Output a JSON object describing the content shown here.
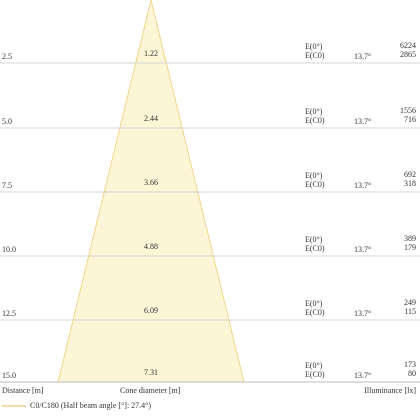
{
  "rows": [
    {
      "distance": "2.5",
      "diameter": "1.22",
      "e0_label": "E(0°)",
      "ec0_label": "E(C0)",
      "angle": "13.7°",
      "e0": "6224",
      "ec0": "2865"
    },
    {
      "distance": "5.0",
      "diameter": "2.44",
      "e0_label": "E(0°)",
      "ec0_label": "E(C0)",
      "angle": "13.7°",
      "e0": "1556",
      "ec0": "716"
    },
    {
      "distance": "7.5",
      "diameter": "3.66",
      "e0_label": "E(0°)",
      "ec0_label": "E(C0)",
      "angle": "13.7°",
      "e0": "692",
      "ec0": "318"
    },
    {
      "distance": "10.0",
      "diameter": "4.88",
      "e0_label": "E(0°)",
      "ec0_label": "E(C0)",
      "angle": "13.7°",
      "e0": "389",
      "ec0": "179"
    },
    {
      "distance": "12.5",
      "diameter": "6.09",
      "e0_label": "E(0°)",
      "ec0_label": "E(C0)",
      "angle": "13.7°",
      "e0": "249",
      "ec0": "115"
    },
    {
      "distance": "15.0",
      "diameter": "7.31",
      "e0_label": "E(0°)",
      "ec0_label": "E(C0)",
      "angle": "13.7°",
      "e0": "173",
      "ec0": "80"
    }
  ],
  "footer": {
    "distance": "Distance [m]",
    "diameter": "Cone diameter [m]",
    "illuminance": "Illuminance [lx]"
  },
  "legend": {
    "label": "C0/C180 (Half beam angle [°]: 27.4°)"
  }
}
